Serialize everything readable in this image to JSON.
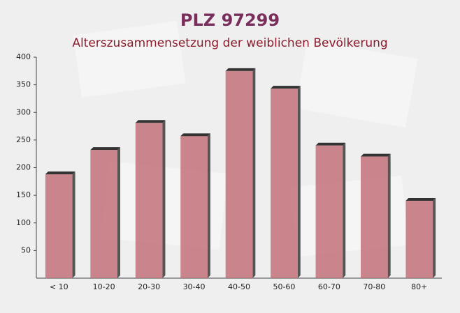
{
  "chart_data": {
    "type": "bar",
    "title": "PLZ 97299",
    "subtitle": "Alterszusammensetzung der weiblichen Bevölkerung",
    "categories": [
      "< 10",
      "10-20",
      "20-30",
      "30-40",
      "40-50",
      "50-60",
      "60-70",
      "70-80",
      "80+"
    ],
    "values": [
      188,
      232,
      281,
      257,
      375,
      343,
      240,
      220,
      140
    ],
    "color": "#c27279",
    "ylim": [
      0,
      400
    ],
    "yticks": [
      50,
      100,
      150,
      200,
      250,
      300,
      350,
      400
    ],
    "grid": false
  }
}
